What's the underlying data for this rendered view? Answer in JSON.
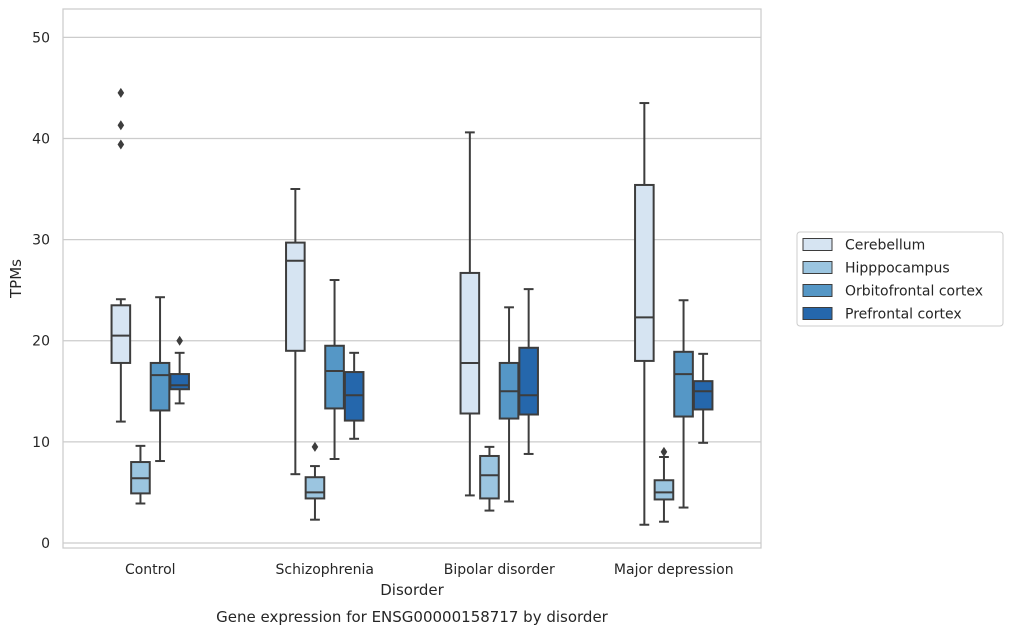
{
  "chart_data": {
    "type": "box",
    "xlabel": "Disorder",
    "ylabel": "TPMs",
    "caption": "Gene expression for ENSG00000158717 by disorder",
    "ylim": [
      -0.5,
      52.8
    ],
    "yticks": [
      0,
      10,
      20,
      30,
      40,
      50
    ],
    "grid": true,
    "legend_position": "right",
    "categories": [
      "Control",
      "Schizophrenia",
      "Bipolar disorder",
      "Major depression"
    ],
    "series": [
      {
        "name": "Cerebellum",
        "color": "#d6e4f2",
        "boxes": [
          {
            "whislo": 12.0,
            "q1": 17.8,
            "med": 20.5,
            "q3": 23.5,
            "whishi": 24.1,
            "fliers": [
              39.4,
              41.3,
              44.5
            ]
          },
          {
            "whislo": 6.8,
            "q1": 19.0,
            "med": 27.9,
            "q3": 29.7,
            "whishi": 35.0,
            "fliers": []
          },
          {
            "whislo": 4.7,
            "q1": 12.8,
            "med": 17.8,
            "q3": 26.7,
            "whishi": 40.6,
            "fliers": []
          },
          {
            "whislo": 1.8,
            "q1": 18.0,
            "med": 22.3,
            "q3": 35.4,
            "whishi": 43.5,
            "fliers": []
          }
        ]
      },
      {
        "name": "Hipppocampus",
        "color": "#9bc5e0",
        "boxes": [
          {
            "whislo": 3.9,
            "q1": 4.9,
            "med": 6.4,
            "q3": 8.0,
            "whishi": 9.6,
            "fliers": []
          },
          {
            "whislo": 2.3,
            "q1": 4.4,
            "med": 5.0,
            "q3": 6.5,
            "whishi": 7.6,
            "fliers": [
              9.5
            ]
          },
          {
            "whislo": 3.2,
            "q1": 4.4,
            "med": 6.7,
            "q3": 8.6,
            "whishi": 9.5,
            "fliers": []
          },
          {
            "whislo": 2.1,
            "q1": 4.3,
            "med": 5.0,
            "q3": 6.2,
            "whishi": 8.5,
            "fliers": [
              9.0
            ]
          }
        ]
      },
      {
        "name": "Orbitofrontal cortex",
        "color": "#5597c6",
        "boxes": [
          {
            "whislo": 8.1,
            "q1": 13.1,
            "med": 16.6,
            "q3": 17.8,
            "whishi": 24.3,
            "fliers": []
          },
          {
            "whislo": 8.3,
            "q1": 13.3,
            "med": 17.0,
            "q3": 19.5,
            "whishi": 26.0,
            "fliers": []
          },
          {
            "whislo": 4.1,
            "q1": 12.3,
            "med": 15.0,
            "q3": 17.8,
            "whishi": 23.3,
            "fliers": []
          },
          {
            "whislo": 3.5,
            "q1": 12.5,
            "med": 16.7,
            "q3": 18.9,
            "whishi": 24.0,
            "fliers": []
          }
        ]
      },
      {
        "name": "Prefrontal cortex",
        "color": "#2567ac",
        "boxes": [
          {
            "whislo": 13.8,
            "q1": 15.2,
            "med": 15.6,
            "q3": 16.7,
            "whishi": 18.8,
            "fliers": [
              20.0
            ]
          },
          {
            "whislo": 10.3,
            "q1": 12.1,
            "med": 14.6,
            "q3": 16.9,
            "whishi": 18.8,
            "fliers": []
          },
          {
            "whislo": 8.8,
            "q1": 12.7,
            "med": 14.6,
            "q3": 19.3,
            "whishi": 25.1,
            "fliers": []
          },
          {
            "whislo": 9.9,
            "q1": 13.2,
            "med": 15.0,
            "q3": 16.0,
            "whishi": 18.7,
            "fliers": []
          }
        ]
      }
    ]
  }
}
